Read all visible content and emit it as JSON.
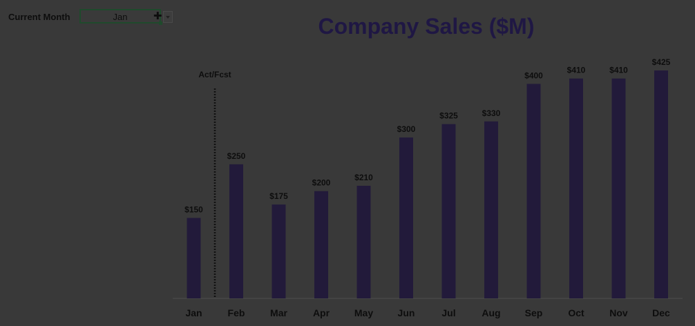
{
  "control": {
    "label": "Current Month",
    "selected": "Jan"
  },
  "colors": {
    "bar": "#221a3a",
    "title": "#1f1744",
    "text": "#0d0d0d",
    "divider": "#111111",
    "axis": "#4f4f4f"
  },
  "chart_data": {
    "type": "bar",
    "title": "Company Sales ($M)",
    "categories": [
      "Jan",
      "Feb",
      "Mar",
      "Apr",
      "May",
      "Jun",
      "Jul",
      "Aug",
      "Sep",
      "Oct",
      "Nov",
      "Dec"
    ],
    "values": [
      150,
      250,
      175,
      200,
      210,
      300,
      325,
      330,
      400,
      410,
      410,
      425
    ],
    "data_labels": [
      "$150",
      "$250",
      "$175",
      "$200",
      "$210",
      "$300",
      "$325",
      "$330",
      "$400",
      "$410",
      "$410",
      "$425"
    ],
    "annotation": "Act/Fcst",
    "ylim": [
      0,
      550
    ],
    "grid": false,
    "legend": "none"
  }
}
